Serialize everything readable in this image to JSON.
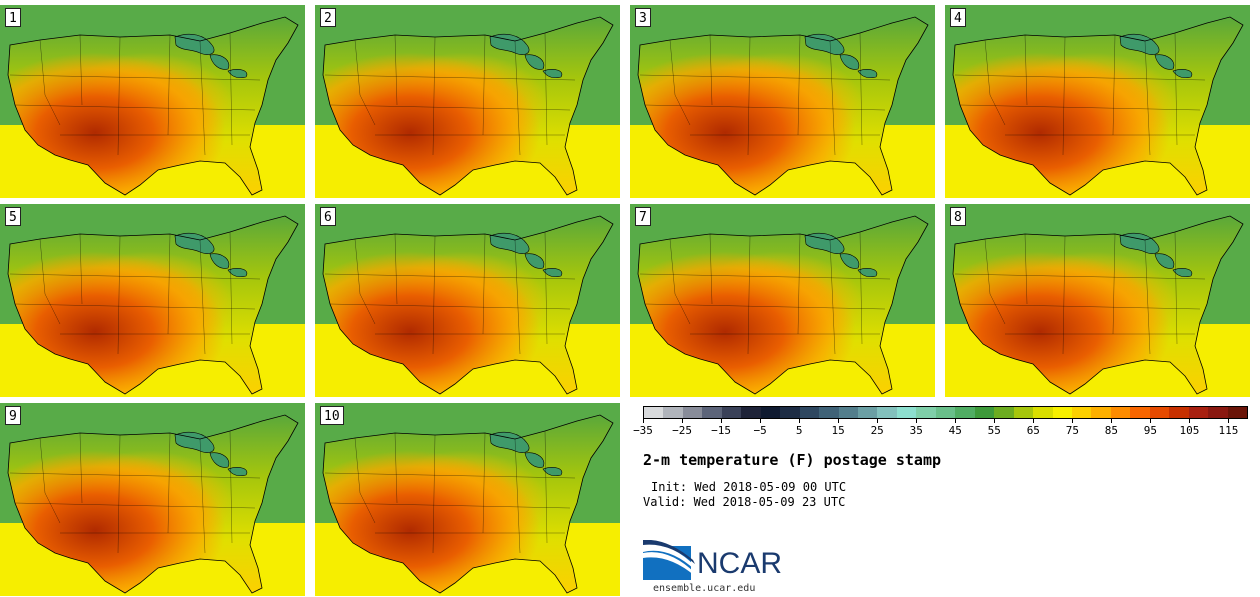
{
  "panels": [
    {
      "label": "1"
    },
    {
      "label": "2"
    },
    {
      "label": "3"
    },
    {
      "label": "4"
    },
    {
      "label": "5"
    },
    {
      "label": "6"
    },
    {
      "label": "7"
    },
    {
      "label": "8"
    },
    {
      "label": "9"
    },
    {
      "label": "10"
    }
  ],
  "colorbar": {
    "colors": [
      "#d8dadc",
      "#b0b4bb",
      "#888c99",
      "#5c6479",
      "#3a4158",
      "#1e2338",
      "#0f1a30",
      "#1d2c44",
      "#2e4760",
      "#3f6277",
      "#537e8c",
      "#6b9fa4",
      "#83c1bd",
      "#8ddfcf",
      "#7fcfa9",
      "#69bf8a",
      "#50ad63",
      "#3d9a3a",
      "#6cac20",
      "#a6c60c",
      "#d9de00",
      "#f7f000",
      "#fcd000",
      "#fdb000",
      "#fd8c00",
      "#f86600",
      "#e54a00",
      "#c73000",
      "#a82010",
      "#8a1810",
      "#6a1408"
    ],
    "tick_labels": [
      "−35",
      "−25",
      "−15",
      "−5",
      "5",
      "15",
      "25",
      "35",
      "45",
      "55",
      "65",
      "75",
      "85",
      "95",
      "105",
      "115"
    ]
  },
  "text": {
    "title": "2-m temperature (F) postage stamp",
    "init": "Init: Wed 2018-05-09 00 UTC",
    "valid": "Valid: Wed 2018-05-09 23 UTC",
    "brand": "NCAR",
    "site": "ensemble.ucar.edu"
  }
}
